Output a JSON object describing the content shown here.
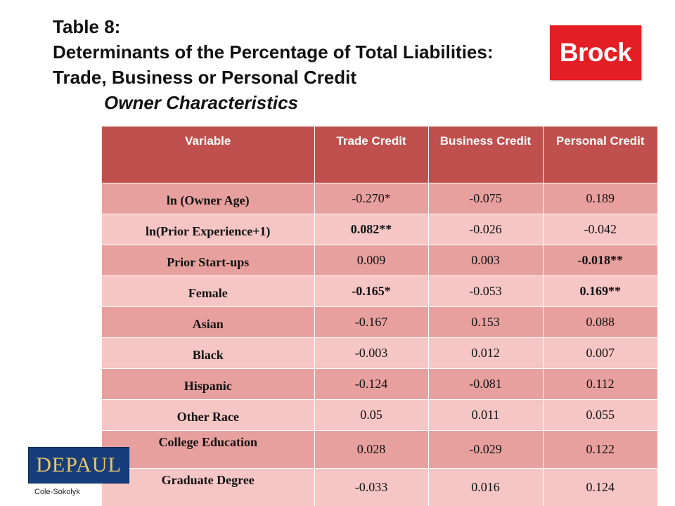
{
  "title": {
    "line1": "Table 8:",
    "line2": "Determinants of the Percentage of Total Liabilities:",
    "line3": "Trade, Business or Personal Credit",
    "subtitle": "Owner Characteristics"
  },
  "logos": {
    "brock": "Brock",
    "depaul": "DEPAUL"
  },
  "table": {
    "headers": [
      "Variable",
      "Trade Credit",
      "Business Credit",
      "Personal Credit"
    ],
    "rows": [
      {
        "variable": "ln (Owner Age)",
        "trade": "-0.270*",
        "business": "-0.075",
        "personal": "0.189"
      },
      {
        "variable": "ln(Prior Experience+1)",
        "trade": "0.082**",
        "business": "-0.026",
        "personal": "-0.042"
      },
      {
        "variable": "Prior Start-ups",
        "trade": "0.009",
        "business": "0.003",
        "personal": "-0.018**"
      },
      {
        "variable": "Female",
        "trade": "-0.165*",
        "business": "-0.053",
        "personal": "0.169**"
      },
      {
        "variable": "Asian",
        "trade": "-0.167",
        "business": "0.153",
        "personal": "0.088"
      },
      {
        "variable": "Black",
        "trade": "-0.003",
        "business": "0.012",
        "personal": "0.007"
      },
      {
        "variable": "Hispanic",
        "trade": "-0.124",
        "business": "-0.081",
        "personal": "0.112"
      },
      {
        "variable": "Other Race",
        "trade": "0.05",
        "business": "0.011",
        "personal": "0.055"
      },
      {
        "variable": "College Education",
        "trade": "0.028",
        "business": "-0.029",
        "personal": "0.122"
      },
      {
        "variable": "Graduate Degree",
        "trade": "-0.033",
        "business": "0.016",
        "personal": "0.124"
      }
    ]
  },
  "footer": "Cole-Sokolyk",
  "colors": {
    "header": "#c0504d",
    "row_odd": "#e8a09e",
    "row_even": "#f6c6c5",
    "brock_red": "#e31e24",
    "depaul_blue": "#173e7a"
  }
}
